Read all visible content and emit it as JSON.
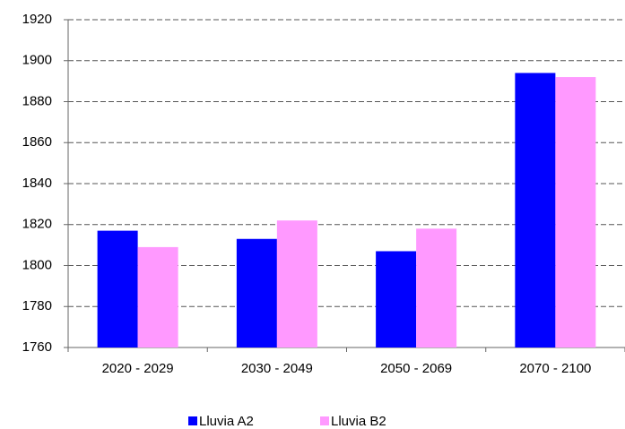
{
  "chart_data": {
    "type": "bar",
    "categories": [
      "2020 - 2029",
      "2030 - 2049",
      "2050 - 2069",
      "2070 - 2100"
    ],
    "series": [
      {
        "name": "Lluvia A2",
        "color": "#0000ff",
        "values": [
          1817,
          1813,
          1807,
          1894
        ]
      },
      {
        "name": "Lluvia B2",
        "color": "#ff99ff",
        "values": [
          1809,
          1822,
          1818,
          1892
        ]
      }
    ],
    "ylim": [
      1760,
      1920
    ],
    "yticks": [
      1760,
      1780,
      1800,
      1820,
      1840,
      1860,
      1880,
      1900,
      1920
    ],
    "grid": true,
    "legend": "bottom"
  }
}
